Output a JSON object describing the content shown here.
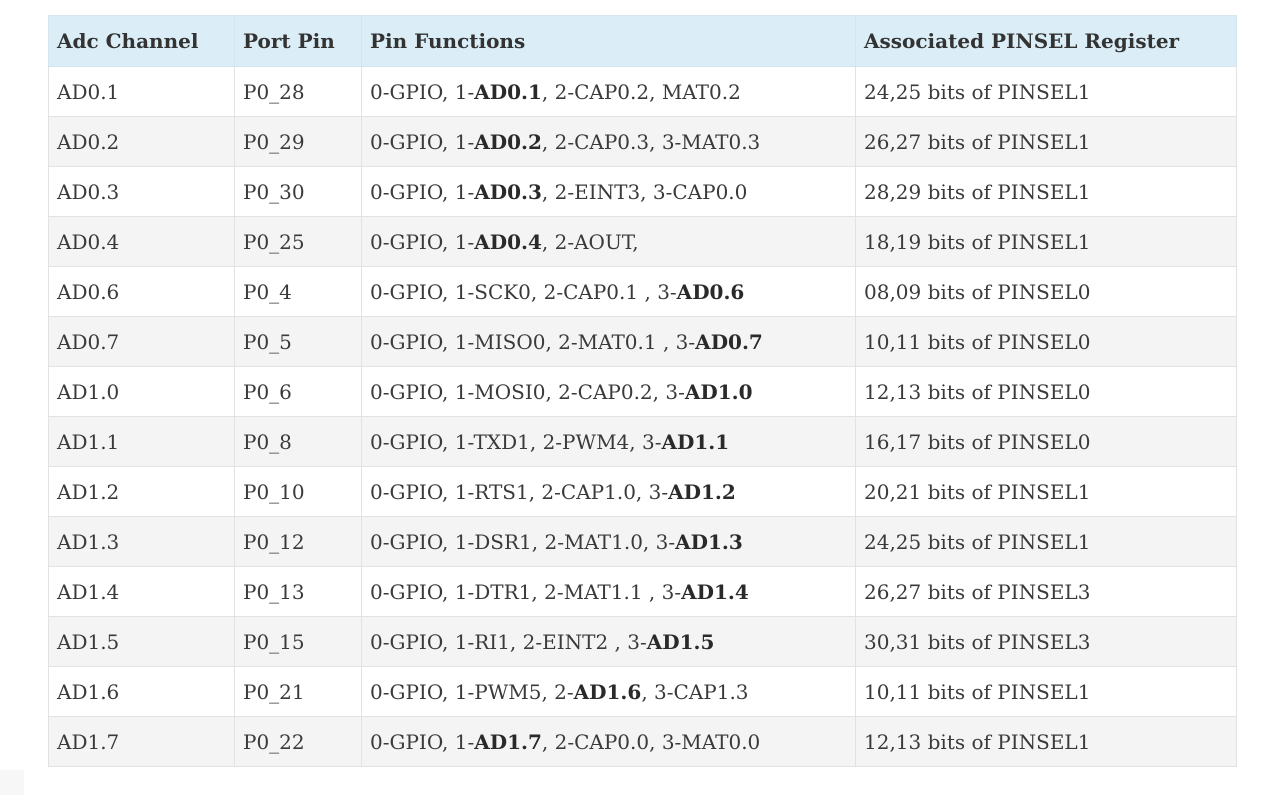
{
  "table": {
    "headers": [
      "Adc Channel",
      "Port Pin",
      "Pin Functions",
      "Associated PINSEL Register"
    ],
    "rows": [
      {
        "channel": "AD0.1",
        "port": "P0_28",
        "fn_pre": "0-GPIO, 1-",
        "fn_bold": "AD0.1",
        "fn_post": ", 2-CAP0.2, MAT0.2",
        "pinsel": "24,25 bits of PINSEL1"
      },
      {
        "channel": "AD0.2",
        "port": "P0_29",
        "fn_pre": "0-GPIO, 1-",
        "fn_bold": "AD0.2",
        "fn_post": ", 2-CAP0.3, 3-MAT0.3",
        "pinsel": "26,27 bits of PINSEL1"
      },
      {
        "channel": "AD0.3",
        "port": "P0_30",
        "fn_pre": "0-GPIO, 1-",
        "fn_bold": "AD0.3",
        "fn_post": ", 2-EINT3, 3-CAP0.0",
        "pinsel": "28,29 bits of PINSEL1"
      },
      {
        "channel": "AD0.4",
        "port": "P0_25",
        "fn_pre": "0-GPIO, 1-",
        "fn_bold": "AD0.4",
        "fn_post": ", 2-AOUT,",
        "pinsel": "18,19 bits of PINSEL1"
      },
      {
        "channel": "AD0.6",
        "port": "P0_4",
        "fn_pre": "0-GPIO, 1-SCK0, 2-CAP0.1 , 3-",
        "fn_bold": "AD0.6",
        "fn_post": "",
        "pinsel": "08,09 bits of PINSEL0"
      },
      {
        "channel": "AD0.7",
        "port": "P0_5",
        "fn_pre": "0-GPIO, 1-MISO0, 2-MAT0.1 , 3-",
        "fn_bold": "AD0.7",
        "fn_post": "",
        "pinsel": "10,11 bits of PINSEL0"
      },
      {
        "channel": "AD1.0",
        "port": "P0_6",
        "fn_pre": "0-GPIO, 1-MOSI0, 2-CAP0.2, 3-",
        "fn_bold": "AD1.0",
        "fn_post": "",
        "pinsel": "12,13 bits of PINSEL0"
      },
      {
        "channel": "AD1.1",
        "port": "P0_8",
        "fn_pre": "0-GPIO, 1-TXD1, 2-PWM4, 3-",
        "fn_bold": "AD1.1",
        "fn_post": "",
        "pinsel": "16,17 bits of PINSEL0"
      },
      {
        "channel": "AD1.2",
        "port": "P0_10",
        "fn_pre": "0-GPIO, 1-RTS1, 2-CAP1.0, 3-",
        "fn_bold": "AD1.2",
        "fn_post": "",
        "pinsel": "20,21 bits of PINSEL1"
      },
      {
        "channel": "AD1.3",
        "port": "P0_12",
        "fn_pre": "0-GPIO, 1-DSR1, 2-MAT1.0, 3-",
        "fn_bold": "AD1.3",
        "fn_post": "",
        "pinsel": "24,25 bits of PINSEL1"
      },
      {
        "channel": "AD1.4",
        "port": "P0_13",
        "fn_pre": "0-GPIO, 1-DTR1, 2-MAT1.1 , 3-",
        "fn_bold": "AD1.4",
        "fn_post": "",
        "pinsel": "26,27 bits of PINSEL3"
      },
      {
        "channel": "AD1.5",
        "port": "P0_15",
        "fn_pre": "0-GPIO, 1-RI1, 2-EINT2 , 3-",
        "fn_bold": "AD1.5",
        "fn_post": "",
        "pinsel": "30,31 bits of PINSEL3"
      },
      {
        "channel": "AD1.6",
        "port": "P0_21",
        "fn_pre": "0-GPIO, 1-PWM5, 2-",
        "fn_bold": "AD1.6",
        "fn_post": ", 3-CAP1.3",
        "pinsel": "10,11 bits of PINSEL1"
      },
      {
        "channel": "AD1.7",
        "port": "P0_22",
        "fn_pre": "0-GPIO, 1-",
        "fn_bold": "AD1.7",
        "fn_post": ", 2-CAP0.0, 3-MAT0.0",
        "pinsel": "12,13 bits of PINSEL1"
      }
    ]
  },
  "colors": {
    "header_bg": "#dbeef7",
    "row_alt_bg": "#f4f4f4",
    "border": "#e2e2e2",
    "text": "#3a3a3a"
  }
}
